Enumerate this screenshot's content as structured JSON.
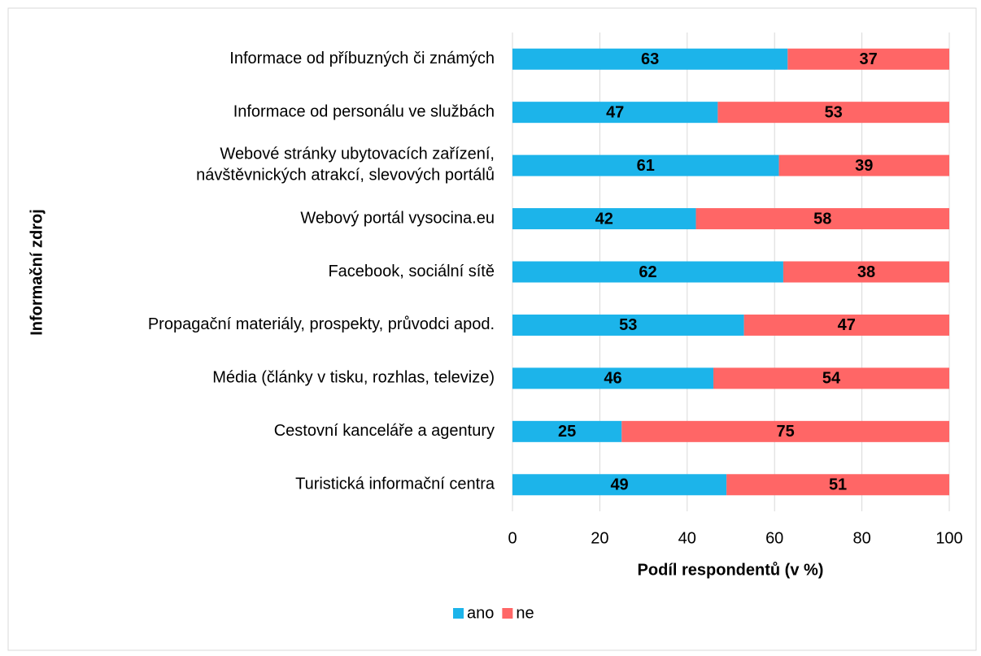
{
  "chart_data": {
    "type": "bar",
    "orientation": "horizontal",
    "stacked": true,
    "categories": [
      "Informace od příbuzných či známých",
      "Informace od personálu ve službách",
      "Webové stránky ubytovacích zařízení,\nnávštěvnických atrakcí, slevových portálů",
      "Webový portál vysocina.eu",
      "Facebook, sociální sítě",
      "Propagační materiály, prospekty, průvodci apod.",
      "Média (články v tisku, rozhlas, televize)",
      "Cestovní kanceláře a agentury",
      "Turistická informační centra"
    ],
    "series": [
      {
        "name": "ano",
        "color": "#1cb4ea",
        "values": [
          63,
          47,
          61,
          42,
          62,
          53,
          46,
          25,
          49
        ]
      },
      {
        "name": "ne",
        "color": "#ff6666",
        "values": [
          37,
          53,
          39,
          58,
          38,
          47,
          54,
          75,
          51
        ]
      }
    ],
    "xlim": [
      0,
      100
    ],
    "xticks": [
      0,
      20,
      40,
      60,
      80,
      100
    ],
    "x_label": "Podíl respondentů (v %)",
    "y_label": "Informační zdroj",
    "grid": true,
    "legend": "bottom"
  }
}
